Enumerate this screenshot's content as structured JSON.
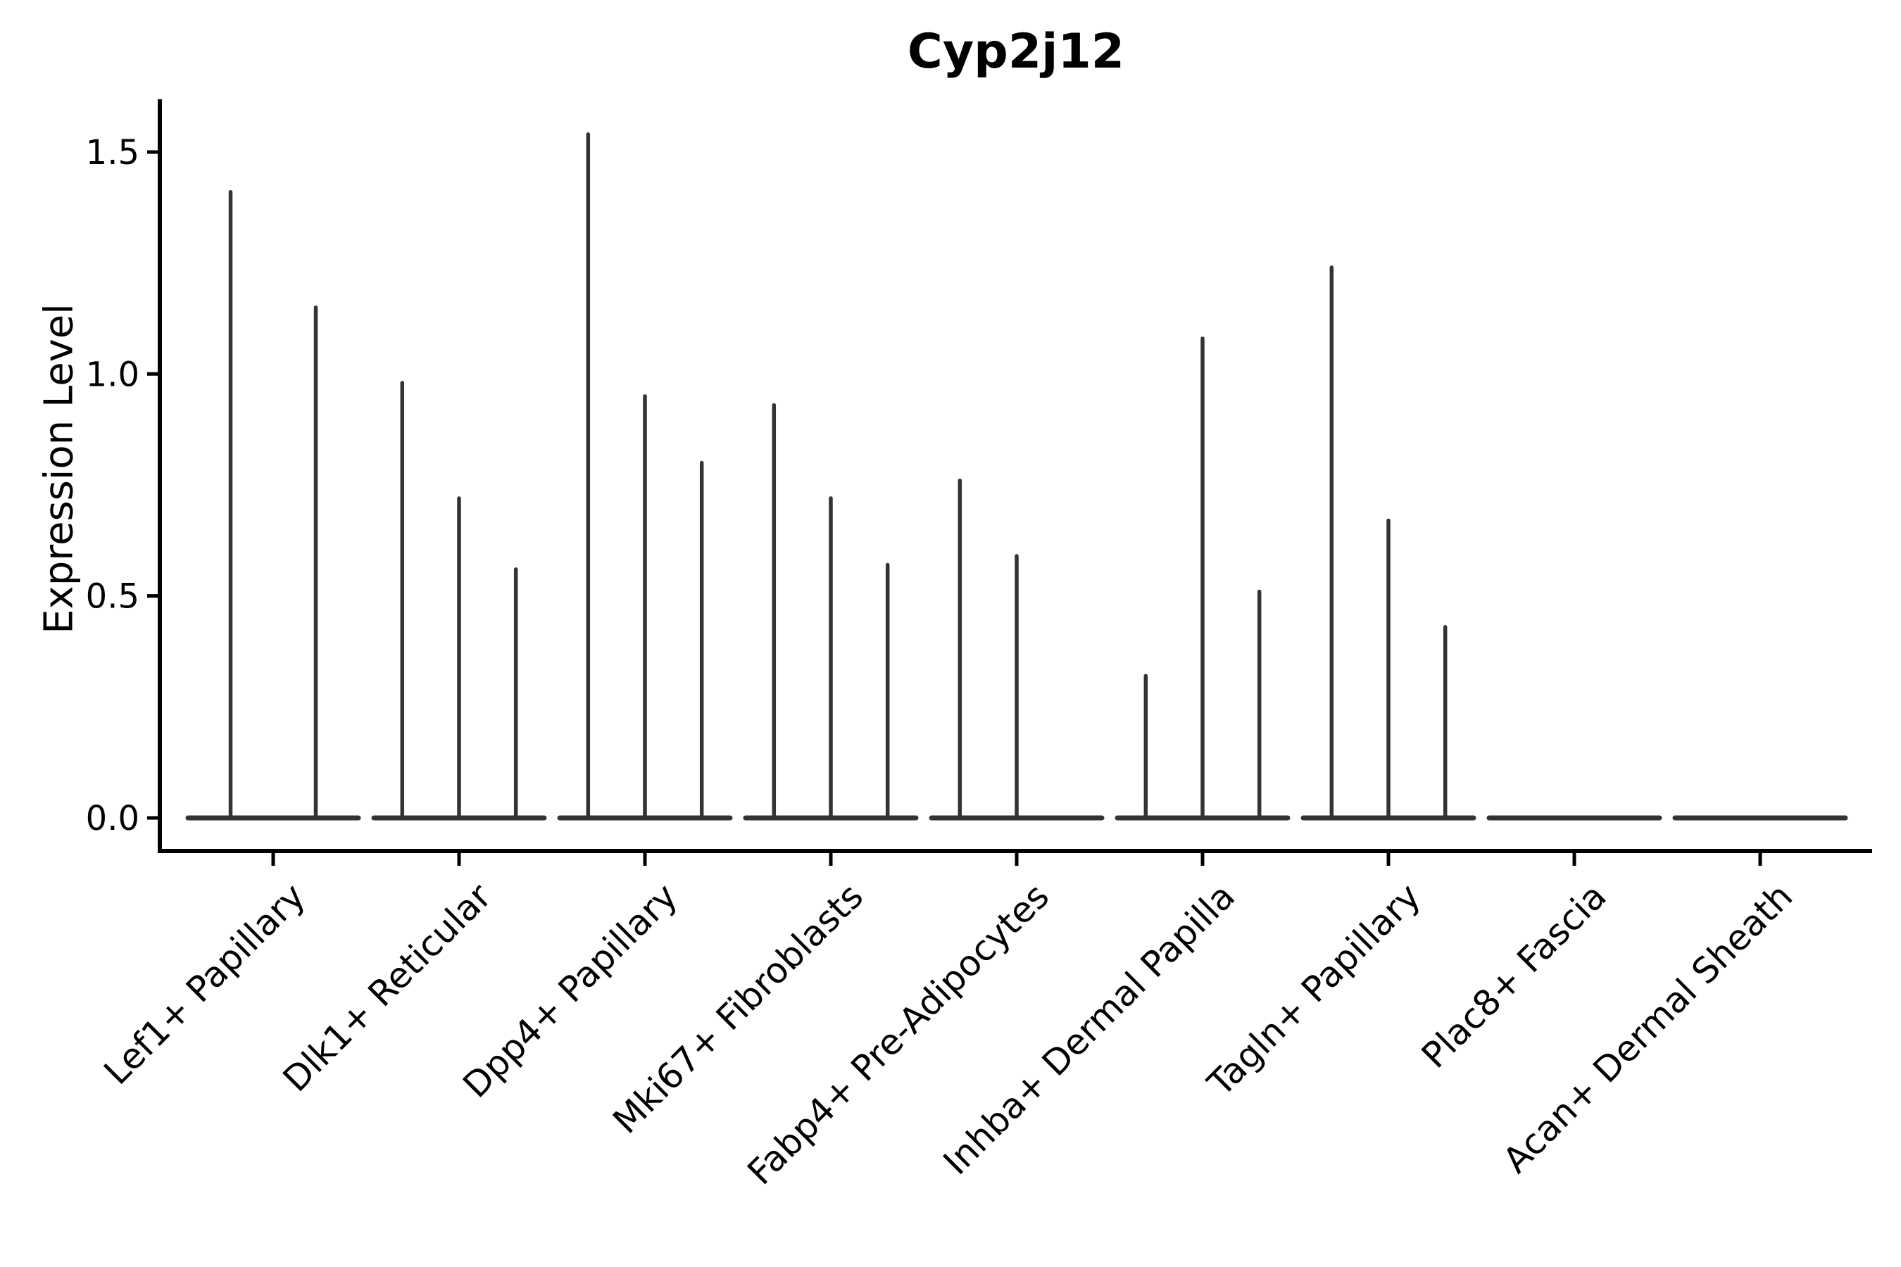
{
  "title": "Cyp2j12",
  "y_axis": {
    "label": "Expression Level",
    "tick_labels": [
      "0.0",
      "0.5",
      "1.0",
      "1.5"
    ]
  },
  "x_axis": {
    "categories": [
      "Lef1+ Papillary",
      "Dlk1+ Reticular",
      "Dpp4+ Papillary",
      "Mki67+ Fibroblasts",
      "Fabp4+ Pre-Adipocytes",
      "Inhba+ Dermal Papilla",
      "Tagln+ Papillary",
      "Plac8+ Fascia",
      "Acan+ Dermal Sheath"
    ]
  },
  "chart_data": {
    "type": "violin",
    "title": "Cyp2j12",
    "xlabel": "",
    "ylabel": "Expression Level",
    "ylim": [
      -0.07,
      1.62
    ],
    "yticks": [
      0.0,
      0.5,
      1.0,
      1.5
    ],
    "grid": false,
    "legend": "none",
    "categories": [
      "Lef1+ Papillary",
      "Dlk1+ Reticular",
      "Dpp4+ Papillary",
      "Mki67+ Fibroblasts",
      "Fabp4+ Pre-Adipocytes",
      "Inhba+ Dermal Papilla",
      "Tagln+ Papillary",
      "Plac8+ Fascia",
      "Acan+ Dermal Sheath"
    ],
    "violins": [
      {
        "category": "Lef1+ Papillary",
        "slots": 2,
        "spike_maxima": [
          1.41,
          1.15
        ]
      },
      {
        "category": "Dlk1+ Reticular",
        "slots": 3,
        "spike_maxima": [
          0.98,
          0.72,
          0.56
        ]
      },
      {
        "category": "Dpp4+ Papillary",
        "slots": 3,
        "spike_maxima": [
          1.54,
          0.95,
          0.8
        ]
      },
      {
        "category": "Mki67+ Fibroblasts",
        "slots": 3,
        "spike_maxima": [
          0.93,
          0.72,
          0.57
        ]
      },
      {
        "category": "Fabp4+ Pre-Adipocytes",
        "slots": 3,
        "spike_maxima": [
          0.76,
          0.59,
          0
        ]
      },
      {
        "category": "Inhba+ Dermal Papilla",
        "slots": 3,
        "spike_maxima": [
          0.32,
          1.08,
          0.51
        ]
      },
      {
        "category": "Tagln+ Papillary",
        "slots": 3,
        "spike_maxima": [
          1.24,
          0.67,
          0.43
        ]
      },
      {
        "category": "Plac8+ Fascia",
        "slots": 3,
        "spike_maxima": [
          0,
          0,
          0
        ]
      },
      {
        "category": "Acan+ Dermal Sheath",
        "slots": 3,
        "spike_maxima": [
          0,
          0,
          0
        ]
      }
    ],
    "description": "Violin plot of Cyp2j12 expression per fibroblast sub-population; all violins are collapsed onto the zero baseline with narrow density spikes rising to the listed per-violin maxima."
  },
  "colors": {
    "violin_stroke": "#333333",
    "axis": "#000000",
    "text": "#000000",
    "background": "#ffffff"
  }
}
